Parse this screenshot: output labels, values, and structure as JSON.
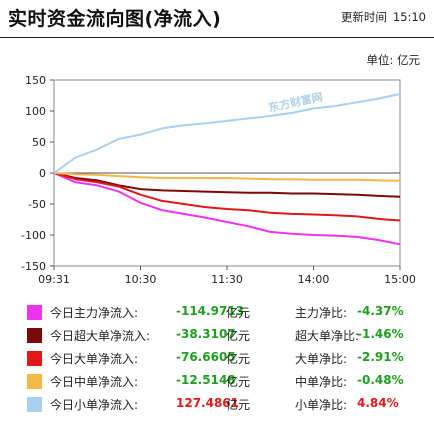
{
  "header": {
    "title": "实时资金流向图(净流入)",
    "update_label": "更新时间",
    "update_time": "15:10",
    "unit_label": "单位: 亿元"
  },
  "watermark_text": "东方财富网",
  "chart_data": {
    "type": "line",
    "x_ticks": [
      "09:31",
      "10:30",
      "11:30",
      "14:00",
      "15:00"
    ],
    "y_ticks": [
      150,
      100,
      50,
      0,
      -50,
      -100,
      -150
    ],
    "ylim": [
      -150,
      150
    ],
    "x": [
      "09:31",
      "09:45",
      "10:00",
      "10:15",
      "10:30",
      "10:45",
      "11:00",
      "11:15",
      "11:30",
      "13:15",
      "13:30",
      "13:45",
      "14:00",
      "14:15",
      "14:30",
      "14:45",
      "15:00"
    ],
    "series": [
      {
        "name": "今日主力净流入",
        "color": "#ee33ee",
        "values": [
          0,
          -15,
          -20,
          -30,
          -48,
          -60,
          -66,
          -72,
          -79,
          -86,
          -95,
          -98,
          -100,
          -101,
          -103,
          -108,
          -114.97
        ]
      },
      {
        "name": "今日超大单净流入",
        "color": "#7a0a0a",
        "values": [
          0,
          -8,
          -12,
          -20,
          -26,
          -28,
          -29,
          -30,
          -31,
          -32,
          -32,
          -33,
          -33,
          -34,
          -35,
          -37,
          -38.31
        ]
      },
      {
        "name": "今日大单净流入",
        "color": "#e01818",
        "values": [
          0,
          -10,
          -15,
          -22,
          -35,
          -45,
          -50,
          -55,
          -58,
          -60,
          -64,
          -66,
          -67,
          -68,
          -70,
          -74,
          -76.66
        ]
      },
      {
        "name": "今日中单净流入",
        "color": "#f2b84a",
        "values": [
          0,
          -2,
          -3,
          -5,
          -7,
          -8,
          -8,
          -8,
          -8,
          -9,
          -10,
          -10,
          -11,
          -11,
          -11,
          -12,
          -12.51
        ]
      },
      {
        "name": "今日小单净流入",
        "color": "#a9cfee",
        "values": [
          0,
          25,
          38,
          55,
          62,
          72,
          77,
          80,
          84,
          88,
          92,
          97,
          104,
          108,
          114,
          120,
          127.49
        ]
      }
    ]
  },
  "legend": [
    {
      "label": "今日主力净流入:",
      "value": "-114.9713",
      "unit": "亿元",
      "ratio_label": "主力净比:",
      "ratio": "-4.37%",
      "color": "#ee33ee",
      "sign": "neg"
    },
    {
      "label": "今日超大单净流入:",
      "value": "-38.3107",
      "unit": "亿元",
      "ratio_label": "超大单净比:",
      "ratio": "-1.46%",
      "color": "#7a0a0a",
      "sign": "neg"
    },
    {
      "label": "今日大单净流入:",
      "value": "-76.6605",
      "unit": "亿元",
      "ratio_label": "大单净比:",
      "ratio": "-2.91%",
      "color": "#e01818",
      "sign": "neg"
    },
    {
      "label": "今日中单净流入:",
      "value": "-12.5148",
      "unit": "亿元",
      "ratio_label": "中单净比:",
      "ratio": "-0.48%",
      "color": "#f2b84a",
      "sign": "neg"
    },
    {
      "label": "今日小单净流入:",
      "value": "127.4861",
      "unit": "亿元",
      "ratio_label": "小单净比:",
      "ratio": "4.84%",
      "color": "#a9cfee",
      "sign": "pos"
    }
  ]
}
